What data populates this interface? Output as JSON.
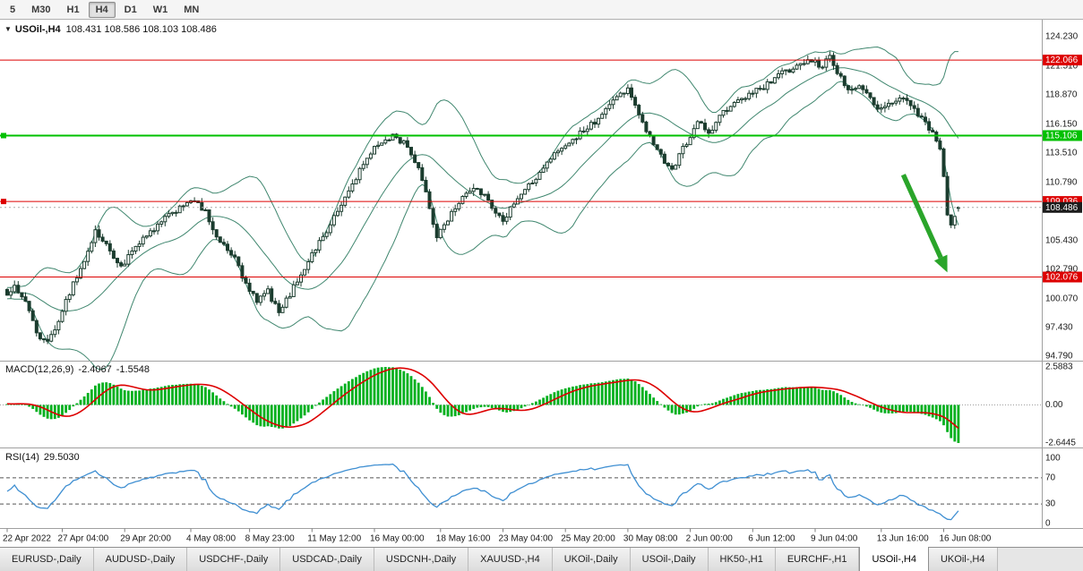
{
  "window": {
    "collapse_icon": "▼"
  },
  "toolbar": {
    "timeframes": [
      {
        "label": "5",
        "active": false
      },
      {
        "label": "M30",
        "active": false
      },
      {
        "label": "H1",
        "active": false
      },
      {
        "label": "H4",
        "active": true
      },
      {
        "label": "D1",
        "active": false
      },
      {
        "label": "W1",
        "active": false
      },
      {
        "label": "MN",
        "active": false
      }
    ]
  },
  "chart": {
    "symbol_period": "USOil-,H4",
    "ohlc": "108.431 108.586 108.103 108.486"
  },
  "indicators": {
    "macd": {
      "label": "MACD(12,26,9)",
      "main_value": "-2.4067",
      "signal_value": "-1.5548"
    },
    "rsi": {
      "label": "RSI(14)",
      "value": "29.5030"
    }
  },
  "tabs": [
    {
      "label": "EURUSD-,Daily",
      "active": false
    },
    {
      "label": "AUDUSD-,Daily",
      "active": false
    },
    {
      "label": "USDCHF-,Daily",
      "active": false
    },
    {
      "label": "USDCAD-,Daily",
      "active": false
    },
    {
      "label": "USDCNH-,Daily",
      "active": false
    },
    {
      "label": "XAUUSD-,H4",
      "active": false
    },
    {
      "label": "UKOil-,Daily",
      "active": false
    },
    {
      "label": "USOil-,Daily",
      "active": false
    },
    {
      "label": "HK50-,H1",
      "active": false
    },
    {
      "label": "EURCHF-,H1",
      "active": false
    },
    {
      "label": "USOil-,H4",
      "active": true
    },
    {
      "label": "UKOil-,H4",
      "active": false
    }
  ],
  "chart_data": {
    "type": "candlestick",
    "symbol": "USOil-",
    "timeframe": "H4",
    "price_axis": {
      "range": [
        94.45,
        125.62
      ],
      "tick_labels": [
        124.23,
        121.51,
        118.87,
        116.15,
        113.51,
        110.79,
        105.43,
        102.79,
        100.07,
        97.43,
        94.79
      ]
    },
    "candles": {
      "count": 260,
      "close_waypoints": [
        [
          0,
          100.5
        ],
        [
          2,
          101.3
        ],
        [
          6,
          99.0
        ],
        [
          9,
          96.3
        ],
        [
          11,
          95.9
        ],
        [
          14,
          98.2
        ],
        [
          18,
          101.5
        ],
        [
          21,
          103.5
        ],
        [
          24,
          106.3
        ],
        [
          28,
          104.5
        ],
        [
          31,
          103.0
        ],
        [
          35,
          104.8
        ],
        [
          40,
          106.5
        ],
        [
          45,
          108.0
        ],
        [
          50,
          109.3
        ],
        [
          54,
          108.0
        ],
        [
          58,
          105.2
        ],
        [
          62,
          103.8
        ],
        [
          65,
          101.3
        ],
        [
          68,
          99.8
        ],
        [
          71,
          100.8
        ],
        [
          74,
          98.7
        ],
        [
          77,
          100.5
        ],
        [
          81,
          103.0
        ],
        [
          85,
          105.3
        ],
        [
          89,
          107.5
        ],
        [
          93,
          110.0
        ],
        [
          97,
          112.5
        ],
        [
          101,
          114.3
        ],
        [
          105,
          115.1
        ],
        [
          109,
          114.2
        ],
        [
          112,
          112.0
        ],
        [
          115,
          108.5
        ],
        [
          117,
          105.8
        ],
        [
          120,
          107.5
        ],
        [
          124,
          109.5
        ],
        [
          128,
          110.3
        ],
        [
          131,
          109.0
        ],
        [
          135,
          107.4
        ],
        [
          138,
          108.8
        ],
        [
          142,
          110.5
        ],
        [
          146,
          112.0
        ],
        [
          150,
          113.8
        ],
        [
          154,
          114.8
        ],
        [
          158,
          115.8
        ],
        [
          162,
          117.0
        ],
        [
          166,
          118.8
        ],
        [
          169,
          119.4
        ],
        [
          172,
          116.8
        ],
        [
          175,
          115.2
        ],
        [
          178,
          113.2
        ],
        [
          181,
          112.0
        ],
        [
          185,
          114.5
        ],
        [
          188,
          116.5
        ],
        [
          191,
          115.2
        ],
        [
          194,
          116.8
        ],
        [
          198,
          118.2
        ],
        [
          203,
          119.0
        ],
        [
          207,
          119.8
        ],
        [
          211,
          120.8
        ],
        [
          215,
          121.5
        ],
        [
          219,
          122.0
        ],
        [
          222,
          121.4
        ],
        [
          224,
          122.6
        ],
        [
          226,
          121.0
        ],
        [
          229,
          119.2
        ],
        [
          232,
          119.8
        ],
        [
          235,
          118.4
        ],
        [
          238,
          117.4
        ],
        [
          241,
          118.2
        ],
        [
          244,
          118.6
        ],
        [
          247,
          117.6
        ],
        [
          250,
          116.2
        ],
        [
          252,
          115.3
        ],
        [
          254,
          113.9
        ],
        [
          255,
          111.2
        ],
        [
          256,
          107.8
        ],
        [
          257,
          107.1
        ],
        [
          258,
          107.9
        ],
        [
          259,
          108.486
        ]
      ],
      "last_ohlc": {
        "o": 108.431,
        "h": 108.586,
        "l": 108.103,
        "c": 108.486
      }
    },
    "style": {
      "up_fill": "#ffffff",
      "down_fill": "#1b3c2e",
      "stroke": "#1b3c2e",
      "band_color": "#40876f"
    },
    "overlays": {
      "bollinger": {
        "period": 20,
        "deviation": 2
      }
    },
    "hlines": [
      {
        "price": 122.066,
        "color": "#dd0000",
        "width": 1,
        "text_color": "#ffffff",
        "handle": false
      },
      {
        "price": 115.106,
        "color": "#00c000",
        "width": 2,
        "text_color": "#ffffff",
        "handle": true
      },
      {
        "price": 109.036,
        "color": "#dd0000",
        "width": 1,
        "text_color": "#ffffff",
        "handle": true
      },
      {
        "price": 102.076,
        "color": "#dd0000",
        "width": 1,
        "text_color": "#ffffff",
        "handle": false
      }
    ],
    "current_price": {
      "value": 108.486,
      "badge_color": "#1c1c1c",
      "text_color": "#ffffff"
    },
    "trend_arrow": {
      "from_index": 244,
      "from_price": 111.5,
      "to_index": 256,
      "to_price": 102.5,
      "color": "#2aa52a"
    },
    "macd": {
      "params": [
        12,
        26,
        9
      ],
      "scale_labels": [
        "2.5883",
        "0.00",
        "-2.6445"
      ],
      "histogram_color": "#00b01e",
      "signal_color": "#dd0000"
    },
    "rsi": {
      "period": 14,
      "levels": [
        100,
        70,
        30,
        0
      ],
      "dashed_levels": [
        70,
        30
      ],
      "line_color": "#3f8fd2"
    },
    "time_labels": [
      {
        "i": 0,
        "label": "22 Apr 2022"
      },
      {
        "i": 15,
        "label": "27 Apr 04:00"
      },
      {
        "i": 32,
        "label": "29 Apr 20:00"
      },
      {
        "i": 50,
        "label": "4 May 08:00"
      },
      {
        "i": 66,
        "label": "8 May 23:00"
      },
      {
        "i": 83,
        "label": "11 May 12:00"
      },
      {
        "i": 100,
        "label": "16 May 00:00"
      },
      {
        "i": 118,
        "label": "18 May 16:00"
      },
      {
        "i": 135,
        "label": "23 May 04:00"
      },
      {
        "i": 152,
        "label": "25 May 20:00"
      },
      {
        "i": 169,
        "label": "30 May 08:00"
      },
      {
        "i": 186,
        "label": "2 Jun 00:00"
      },
      {
        "i": 203,
        "label": "6 Jun 12:00"
      },
      {
        "i": 220,
        "label": "9 Jun 04:00"
      },
      {
        "i": 238,
        "label": "13 Jun 16:00"
      },
      {
        "i": 255,
        "label": "16 Jun 08:00"
      }
    ]
  }
}
